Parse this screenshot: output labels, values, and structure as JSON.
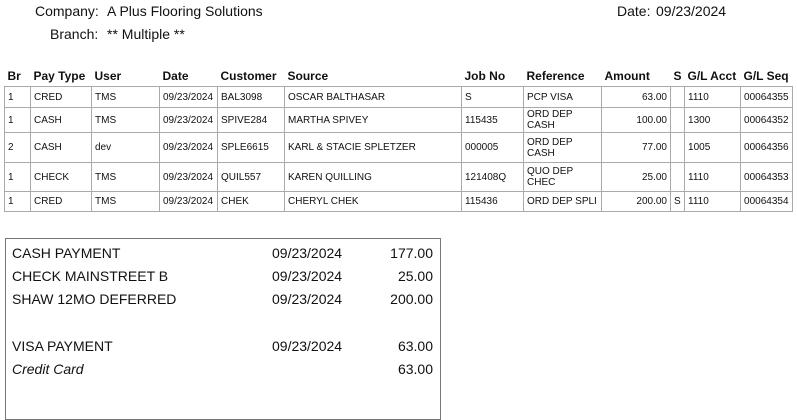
{
  "header": {
    "company_label": "Company:",
    "company": "A Plus Flooring Solutions",
    "date_label": "Date:",
    "date": "09/23/2024",
    "branch_label": "Branch:",
    "branch": "** Multiple **"
  },
  "table": {
    "columns": [
      "Br",
      "Pay Type",
      "User",
      "Date",
      "Customer",
      "Source",
      "Job No",
      "Reference",
      "Amount",
      "S",
      "G/L Acct",
      "G/L Seq"
    ],
    "rows": [
      [
        "1",
        "CRED",
        "TMS",
        "09/23/2024",
        "BAL3098",
        "OSCAR BALTHASAR",
        "S",
        "PCP VISA",
        "63.00",
        "",
        "1110",
        "00064355"
      ],
      [
        "1",
        "CASH",
        "TMS",
        "09/23/2024",
        "SPIVE284",
        "MARTHA SPIVEY",
        "115435",
        "ORD DEP\nCASH",
        "100.00",
        "",
        "1300",
        "00064352"
      ],
      [
        "2",
        "CASH",
        "dev",
        "09/23/2024",
        "SPLE6615",
        "KARL & STACIE SPLETZER",
        "000005",
        "ORD DEP\nCASH",
        "77.00",
        "",
        "1005",
        "00064356"
      ],
      [
        "1",
        "CHECK",
        "TMS",
        "09/23/2024",
        "QUIL557",
        "KAREN QUILLING",
        "121408Q",
        "QUO DEP\nCHEC",
        "25.00",
        "",
        "1110",
        "00064353"
      ],
      [
        "1",
        "CRED",
        "TMS",
        "09/23/2024",
        "CHEK",
        "CHERYL CHEK",
        "115436",
        "ORD DEP SPLI",
        "200.00",
        "S",
        "1110",
        "00064354"
      ]
    ]
  },
  "summary": {
    "groups": [
      {
        "rows": [
          {
            "label": "CASH PAYMENT",
            "date": "09/23/2024",
            "amount": "177.00"
          },
          {
            "label": "CHECK MAINSTREET B",
            "date": "09/23/2024",
            "amount": "25.00"
          },
          {
            "label": "SHAW 12MO DEFERRED",
            "date": "09/23/2024",
            "amount": "200.00"
          }
        ]
      },
      {
        "rows": [
          {
            "label": "VISA PAYMENT",
            "date": "09/23/2024",
            "amount": "63.00"
          }
        ],
        "subtotal": {
          "label": "Credit Card",
          "amount": "63.00"
        }
      }
    ]
  }
}
